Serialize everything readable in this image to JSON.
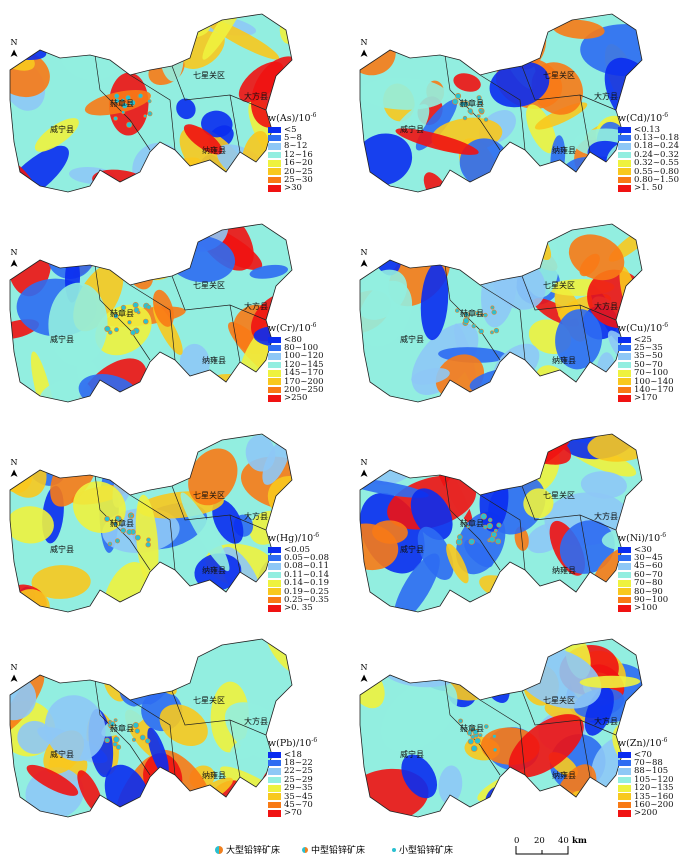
{
  "place_names": {
    "qixingguan": "七星关区",
    "dafang": "大方县",
    "hezhang": "赫章县",
    "weining": "威宁县",
    "nayong": "纳雍县"
  },
  "north_label": "N",
  "colors": [
    "#0a2cf0",
    "#2d6cf2",
    "#8ec8f6",
    "#92eee0",
    "#eef23e",
    "#f8c81e",
    "#f87a16",
    "#f01212"
  ],
  "panels": [
    {
      "element": "As",
      "title": "w(As)/10",
      "title_sup": "-6",
      "classes": [
        "<5",
        "5~8",
        "8~12",
        "12~16",
        "16~20",
        "20~25",
        "25~30",
        ">30"
      ]
    },
    {
      "element": "Cd",
      "title": "w(Cd)/10",
      "title_sup": "-6",
      "classes": [
        "<0.13",
        "0.13~0.18",
        "0.18~0.24",
        "0.24~0.32",
        "0.32~0.55",
        "0.55~0.80",
        "0.80~1.50",
        ">1. 50"
      ]
    },
    {
      "element": "Cr",
      "title": "w(Cr)/10",
      "title_sup": "-6",
      "classes": [
        "<80",
        "80~100",
        "100~120",
        "120~145",
        "145~170",
        "170~200",
        "200~250",
        ">250"
      ]
    },
    {
      "element": "Cu",
      "title": "w(Cu)/10",
      "title_sup": "-6",
      "classes": [
        "<25",
        "25~35",
        "35~50",
        "50~70",
        "70~100",
        "100~140",
        "140~170",
        ">170"
      ]
    },
    {
      "element": "Hg",
      "title": "w(Hg)/10",
      "title_sup": "-6",
      "classes": [
        "<0.05",
        "0.05~0.08",
        "0.08~0.11",
        "0.11~0.14",
        "0.14~0.19",
        "0.19~0.25",
        "0.25~0.35",
        ">0. 35"
      ]
    },
    {
      "element": "Ni",
      "title": "w(Ni)/10",
      "title_sup": "-6",
      "classes": [
        "<30",
        "30~45",
        "45~60",
        "60~70",
        "70~80",
        "80~90",
        "90~100",
        ">100"
      ]
    },
    {
      "element": "Pb",
      "title": "w(Pb)/10",
      "title_sup": "-6",
      "classes": [
        "<18",
        "18~22",
        "22~25",
        "25~29",
        "29~35",
        "35~45",
        "45~70",
        ">70"
      ]
    },
    {
      "element": "Zn",
      "title": "w(Zn)/10",
      "title_sup": "-6",
      "classes": [
        "<70",
        "70~88",
        "88~105",
        "105~120",
        "120~135",
        "135~160",
        "160~200",
        ">200"
      ]
    }
  ],
  "deposit_legend": {
    "large": "大型铅锌矿床",
    "medium": "中型铅锌矿床",
    "small": "小型铅锌矿床"
  },
  "scale_bar": {
    "ticks": [
      "0",
      "20",
      "40"
    ],
    "unit": "km"
  }
}
